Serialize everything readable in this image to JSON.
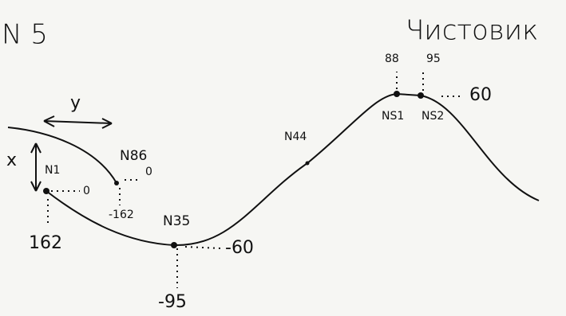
{
  "header": {
    "sheet": "N 5",
    "title": "Чистовик"
  },
  "axes": {
    "y": "y",
    "x": "x"
  },
  "nodes": [
    {
      "label": "N1",
      "right": "0",
      "below": "162"
    },
    {
      "label": "N86",
      "right": "0",
      "below": "-162"
    },
    {
      "label": "N35",
      "right": "-60",
      "below": "-95"
    },
    {
      "label": "N44"
    },
    {
      "label": "NS1",
      "above": "88"
    },
    {
      "label": "NS2",
      "above": "95",
      "right": "60"
    }
  ]
}
